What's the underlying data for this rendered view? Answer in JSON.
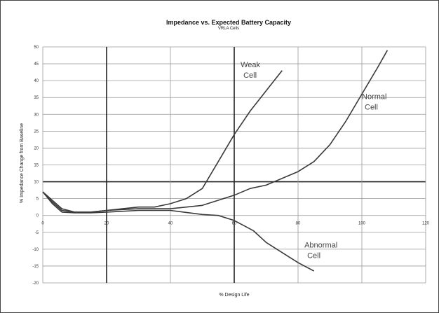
{
  "chart_data": {
    "type": "line",
    "title": "Impedance vs. Expected Battery Capacity",
    "subtitle": "VRLA Cells",
    "xlabel": "% Design Life",
    "ylabel": "% Impedance Change from Baseline",
    "xlim": [
      0,
      120
    ],
    "ylim": [
      -20,
      50
    ],
    "x_ticks": [
      "0",
      "20",
      "40",
      "60",
      "80",
      "100",
      "120"
    ],
    "y_ticks": [
      "50",
      "45",
      "40",
      "35",
      "30",
      "25",
      "20",
      "15",
      "10",
      "5",
      "0",
      "-5",
      "-10",
      "-15",
      "-20"
    ],
    "grid": true,
    "series": [
      {
        "name": "Weak Cell",
        "label": [
          "Weak",
          "Cell"
        ],
        "x": [
          0,
          3,
          6,
          10,
          15,
          20,
          25,
          30,
          35,
          40,
          45,
          50,
          55,
          60,
          65,
          70,
          75
        ],
        "y": [
          7,
          4.5,
          2,
          1,
          1,
          1.5,
          2,
          2.5,
          2.5,
          3.5,
          5,
          8,
          16,
          24,
          31,
          37,
          43
        ]
      },
      {
        "name": "Normal Cell",
        "label": [
          "Normal",
          "Cell"
        ],
        "x": [
          0,
          3,
          6,
          10,
          15,
          20,
          30,
          40,
          50,
          60,
          65,
          70,
          80,
          85,
          90,
          95,
          100,
          105,
          108
        ],
        "y": [
          7,
          4,
          1.5,
          1,
          1,
          1.5,
          2,
          2,
          3,
          6,
          8,
          9,
          13,
          16,
          21,
          28,
          36,
          44,
          49
        ]
      },
      {
        "name": "Abnormal Cell",
        "label": [
          "Abnormal",
          "Cell"
        ],
        "x": [
          0,
          3,
          6,
          10,
          15,
          20,
          30,
          40,
          50,
          55,
          60,
          63,
          66,
          70,
          75,
          80,
          85
        ],
        "y": [
          7,
          3.5,
          1,
          0.8,
          0.8,
          1,
          1.5,
          1.5,
          0.3,
          0,
          -1.5,
          -3,
          -4.5,
          -8,
          -11,
          -14,
          -16.5
        ]
      }
    ]
  },
  "colors": {
    "line": "#3a3a3a",
    "grid": "#9a9a9a",
    "heavy_grid": "#222222"
  }
}
